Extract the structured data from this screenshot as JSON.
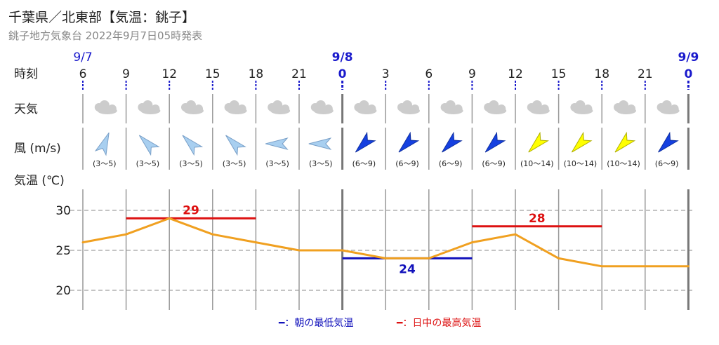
{
  "header": {
    "title": "千葉県／北東部【気温：銚子】",
    "subtitle": "銚子地方気象台 2022年9月7日05時発表"
  },
  "row_labels": {
    "time": "時刻",
    "weather": "天気",
    "wind": "風 (m/s)",
    "temperature": "気温 (℃)"
  },
  "dates": [
    {
      "label": "9/7",
      "bold": false
    },
    {
      "label": "9/8",
      "bold": true
    },
    {
      "label": "9/9",
      "bold": true
    }
  ],
  "legend": {
    "min": "━：朝の最低気温",
    "max": "━：日中の最高気温"
  },
  "colors": {
    "line": "#f0a020",
    "min": "#1111bb",
    "max": "#dd1111",
    "date": "#1a1acc",
    "icon": "#cccccc"
  },
  "chart_data": {
    "type": "line",
    "ylim": [
      17,
      32
    ],
    "yticks": [
      20,
      25,
      30
    ],
    "grid": true,
    "hours": [
      6,
      9,
      12,
      15,
      18,
      21,
      0,
      3,
      6,
      9,
      12,
      15,
      18,
      21,
      0
    ],
    "hour_labels": [
      "6",
      "9",
      "12",
      "15",
      "18",
      "21",
      "0",
      "3",
      "6",
      "9",
      "12",
      "15",
      "18",
      "21",
      "0"
    ],
    "temperature": [
      26,
      27,
      29,
      27,
      26,
      25,
      25,
      24,
      24,
      26,
      27,
      24,
      23,
      23,
      23
    ],
    "weather": [
      "cloudy",
      "cloudy",
      "cloudy",
      "cloudy",
      "cloudy",
      "cloudy",
      "cloudy",
      "cloudy",
      "cloudy",
      "cloudy",
      "cloudy",
      "cloudy",
      "cloudy",
      "cloudy"
    ],
    "wind_speed": [
      "(3～5)",
      "(3～5)",
      "(3～5)",
      "(3～5)",
      "(3～5)",
      "(3～5)",
      "(6～9)",
      "(6～9)",
      "(6～9)",
      "(6～9)",
      "(10～14)",
      "(10～14)",
      "(10～14)",
      "(6～9)"
    ],
    "wind_direction": [
      "北北東",
      "北西",
      "北西",
      "北西",
      "西",
      "西",
      "南西",
      "南西",
      "南西",
      "南西",
      "南西",
      "南西",
      "南西",
      "南西"
    ],
    "wind_level": [
      1,
      1,
      1,
      1,
      1,
      1,
      2,
      2,
      2,
      2,
      3,
      3,
      3,
      2
    ],
    "min_temp": {
      "value": 24,
      "label": "24",
      "from_index": 6,
      "to_index": 9
    },
    "max_temp": [
      {
        "value": 29,
        "label": "29",
        "from_index": 1,
        "to_index": 4
      },
      {
        "value": 28,
        "label": "28",
        "from_index": 9,
        "to_index": 12
      }
    ]
  }
}
